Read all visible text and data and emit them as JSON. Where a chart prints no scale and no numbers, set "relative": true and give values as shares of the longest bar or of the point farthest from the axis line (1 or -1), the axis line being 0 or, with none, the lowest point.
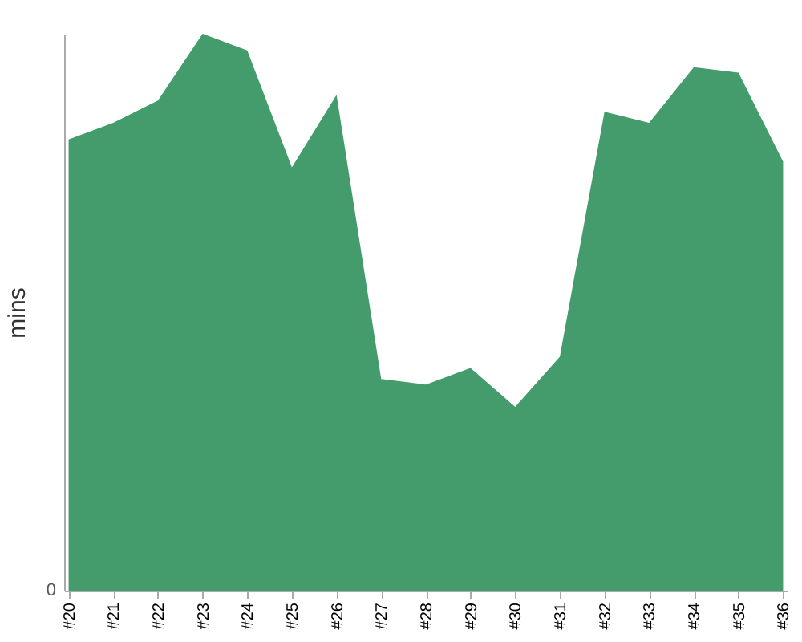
{
  "chart_data": {
    "type": "area",
    "ylabel": "mins",
    "categories": [
      "#20",
      "#21",
      "#22",
      "#23",
      "#24",
      "#25",
      "#26",
      "#27",
      "#28",
      "#29",
      "#30",
      "#31",
      "#32",
      "#33",
      "#34",
      "#35",
      "#36"
    ],
    "values": [
      0.81,
      0.84,
      0.88,
      1.0,
      0.97,
      0.76,
      0.89,
      0.38,
      0.37,
      0.4,
      0.33,
      0.42,
      0.86,
      0.84,
      0.94,
      0.93,
      0.77
    ],
    "color": "#449c6d",
    "relative": true,
    "annotations": [
      "0"
    ]
  }
}
